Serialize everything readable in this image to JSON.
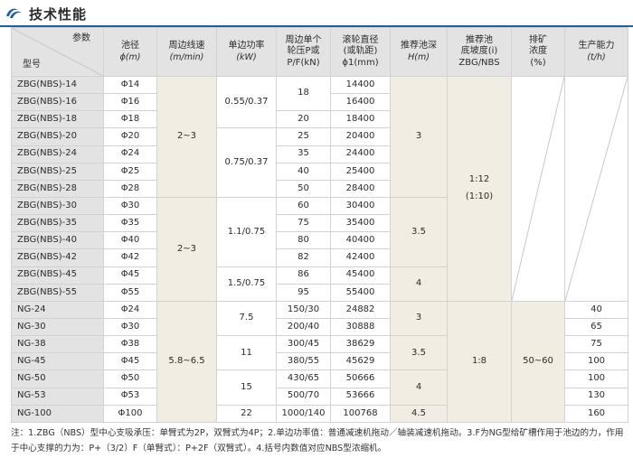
{
  "header": {
    "title": "技术性能",
    "logo_icon": "double-swoosh-logo-icon",
    "accent_color": "#1a5fa8"
  },
  "table": {
    "headers": {
      "param": "参数",
      "model": "型号",
      "diameter": {
        "name": "池径",
        "unit": "ϕ(m)"
      },
      "speed": {
        "name": "周边线速",
        "unit": "(m/min)"
      },
      "power": {
        "name": "单边功率",
        "unit": "(kW)"
      },
      "pressure": {
        "line1": "周边单个",
        "line2": "轮压P或",
        "line3": "P/F(kN)"
      },
      "roller": {
        "line1": "滚轮直径",
        "line2": "(或轨距)",
        "line3": "ϕ1(mm)"
      },
      "depth": {
        "name": "推荐池深",
        "unit": "H(m)"
      },
      "slope": {
        "line1": "推荐池",
        "line2": "底坡度(i)",
        "line3": "ZBG/NBS"
      },
      "concentration": {
        "line1": "排矿",
        "line2": "浓度",
        "line3": "(%)"
      },
      "capacity": {
        "name": "生产能力",
        "unit": "(t/h)"
      }
    },
    "rows": [
      {
        "model": "ZBG(NBS)-14",
        "diameter": "Φ14",
        "pressure": "",
        "roller": "14400"
      },
      {
        "model": "ZBG(NBS)-16",
        "diameter": "Φ16",
        "pressure": "18",
        "roller": "16400"
      },
      {
        "model": "ZBG(NBS)-18",
        "diameter": "Φ18",
        "pressure": "20",
        "roller": "18400"
      },
      {
        "model": "ZBG(NBS)-20",
        "diameter": "Φ20",
        "pressure": "25",
        "roller": "20400"
      },
      {
        "model": "ZBG(NBS)-24",
        "diameter": "Φ24",
        "pressure": "35",
        "roller": "24400"
      },
      {
        "model": "ZBG(NBS)-25",
        "diameter": "Φ25",
        "pressure": "40",
        "roller": "25400"
      },
      {
        "model": "ZBG(NBS)-28",
        "diameter": "Φ28",
        "pressure": "50",
        "roller": "28400"
      },
      {
        "model": "ZBG(NBS)-30",
        "diameter": "Φ30",
        "pressure": "60",
        "roller": "30400"
      },
      {
        "model": "ZBG(NBS)-35",
        "diameter": "Φ35",
        "pressure": "75",
        "roller": "35400"
      },
      {
        "model": "ZBG(NBS)-40",
        "diameter": "Φ40",
        "pressure": "80",
        "roller": "40400"
      },
      {
        "model": "ZBG(NBS)-42",
        "diameter": "Φ42",
        "pressure": "82",
        "roller": "42400"
      },
      {
        "model": "ZBG(NBS)-45",
        "diameter": "Φ45",
        "pressure": "86",
        "roller": "45400"
      },
      {
        "model": "ZBG(NBS)-55",
        "diameter": "Φ55",
        "pressure": "95",
        "roller": "55400"
      },
      {
        "model": "NG-24",
        "diameter": "Φ24",
        "pressure": "150/30",
        "roller": "24882",
        "capacity": "40"
      },
      {
        "model": "NG-30",
        "diameter": "Φ30",
        "pressure": "200/40",
        "roller": "30888",
        "capacity": "65"
      },
      {
        "model": "NG-38",
        "diameter": "Φ38",
        "pressure": "300/45",
        "roller": "38629",
        "capacity": "75"
      },
      {
        "model": "NG-45",
        "diameter": "Φ45",
        "pressure": "380/55",
        "roller": "45629",
        "capacity": "100"
      },
      {
        "model": "NG-50",
        "diameter": "Φ50",
        "pressure": "430/65",
        "roller": "50666",
        "capacity": "100"
      },
      {
        "model": "NG-53",
        "diameter": "Φ53",
        "pressure": "500/70",
        "roller": "53666",
        "capacity": "130"
      },
      {
        "model": "NG-100",
        "diameter": "Φ100",
        "pressure": "1000/140",
        "roller": "100768",
        "capacity": "160"
      }
    ],
    "merged": {
      "speed_zbg_a": "2~3",
      "speed_zbg_b": "2~3",
      "speed_ng": "5.8~6.5",
      "power_a": "0.55/0.37",
      "power_b": "0.75/0.37",
      "power_c": "1.1/0.75",
      "power_d": "1.5/0.75",
      "power_ng_a": "7.5",
      "power_ng_b": "11",
      "power_ng_c": "15",
      "power_ng_d": "22",
      "depth_a": "3",
      "depth_b": "3.5",
      "depth_c": "4",
      "depth_ng_a": "3",
      "depth_ng_b": "3.5",
      "depth_ng_c": "4",
      "depth_ng_d": "4.5",
      "slope_zbg_line1": "1:12",
      "slope_zbg_line2": "(1:10)",
      "slope_ng": "1:8",
      "concentration_ng": "50~60"
    }
  },
  "note": "注：1.ZBG（NBS）型中心支吸承压：单臂式为2P，双臂式为4P；2.单边功率值：普通减速机拖动／轴装减速机拖动。3.F为NG型给矿槽作用于池边的力，作用于中心支撑的力为：P+（3/2）F（单臂式）：P+2F（双臂式）。4.括号内数值对应NBS型浓缩机。"
}
